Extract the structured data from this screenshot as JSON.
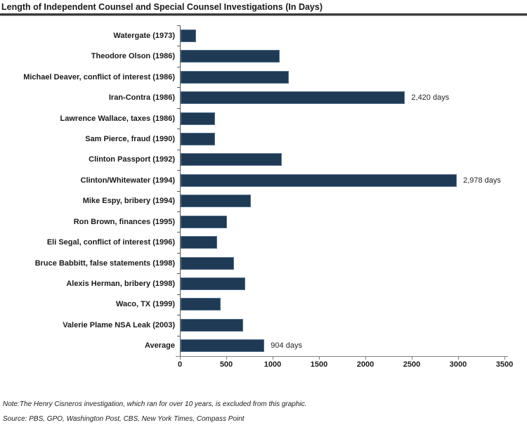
{
  "title": "Length of Independent Counsel and Special Counsel Investigations (In Days)",
  "note": "Note:The Henry Cisneros investigation, which ran for over 10 years, is excluded from this graphic.",
  "source": "Source: PBS, GPO, Washington Post, CBS, New York Times, Compass Point",
  "colors": {
    "bar": "#1f3a54",
    "y_axis": "#595959",
    "x_axis": "#7f7f7f",
    "text": "#1a1a1a"
  },
  "chart_data": {
    "type": "bar",
    "orientation": "horizontal",
    "title": "Length of Independent Counsel and Special Counsel Investigations (In Days)",
    "categories": [
      "Watergate (1973)",
      "Theodore Olson (1986)",
      "Michael Deaver, conflict of interest (1986)",
      "Iran-Contra (1986)",
      "Lawrence Wallace, taxes (1986)",
      "Sam Pierce, fraud (1990)",
      "Clinton Passport (1992)",
      "Clinton/Whitewater (1994)",
      "Mike Espy, bribery (1994)",
      "Ron Brown, finances (1995)",
      "Eli Segal, conflict of interest (1996)",
      "Bruce Babbitt, false statements (1998)",
      "Alexis Herman, bribery (1998)",
      "Waco, TX (1999)",
      "Valerie Plame NSA Leak (2003)",
      "Average"
    ],
    "values": [
      170,
      1065,
      1170,
      2420,
      370,
      370,
      1090,
      2978,
      760,
      500,
      395,
      575,
      695,
      430,
      675,
      904
    ],
    "value_labels": [
      "",
      "",
      "",
      "2,420 days",
      "",
      "",
      "",
      "2,978 days",
      "",
      "",
      "",
      "",
      "",
      "",
      "",
      "904 days"
    ],
    "xlabel": "",
    "ylabel": "",
    "xlim": [
      0,
      3500
    ],
    "xticks": [
      0,
      500,
      1000,
      1500,
      2000,
      2500,
      3000,
      3500
    ],
    "grid": false,
    "legend": false,
    "bar_color": "#1f3a54"
  }
}
